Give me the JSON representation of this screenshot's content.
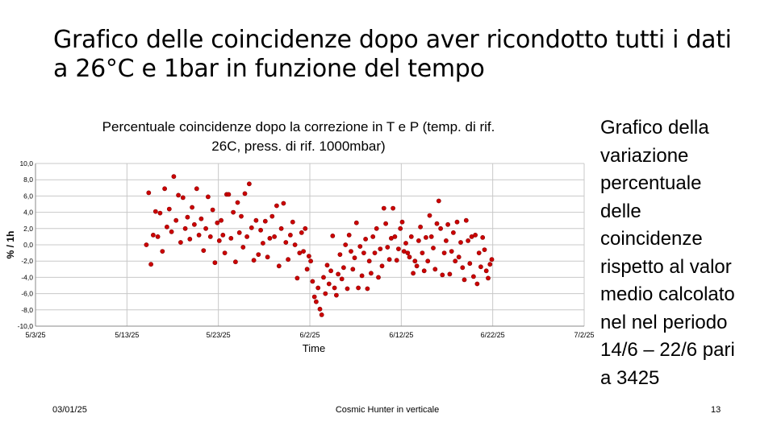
{
  "slide": {
    "title_lines": [
      "Grafico delle coincidenze dopo aver ricondotto tutti i dati",
      "a 26°C e 1bar in funzione del tempo"
    ],
    "side_text_lines": [
      "Grafico della",
      "variazione",
      "percentuale",
      "delle",
      "coincidenze",
      "rispetto al valor",
      "medio calcolato",
      "nel nel periodo",
      "14/6 – 22/6 pari",
      "a 3425"
    ],
    "footer": {
      "date": "03/01/25",
      "center": "Cosmic Hunter in verticale",
      "page": "13"
    }
  },
  "chart_data": {
    "type": "scatter",
    "title_lines": [
      "Percentuale coincidenze dopo la correzione in T  e P (temp. di rif.",
      "26C, press. di rif. 1000mbar)"
    ],
    "xlabel": "Time",
    "ylabel": "% / 1h",
    "xlim": [
      "2025-05-03",
      "2025-07-02"
    ],
    "ylim": [
      -10,
      10
    ],
    "x_ticks": [
      "5/3/25",
      "5/13/25",
      "5/23/25",
      "6/2/25",
      "6/12/25",
      "6/22/25",
      "7/2/25"
    ],
    "y_ticks": [
      "10,0",
      "8,0",
      "6,0",
      "4,0",
      "2,0",
      "0,0",
      "-2,0",
      "-4,0",
      "-6,0",
      "-8,0",
      "-10,0"
    ],
    "grid": true,
    "marker_color": "#cc0000",
    "points_by_day": [
      {
        "date": "2025-05-15",
        "values": [
          0.0,
          6.4,
          -2.4,
          1.2
        ]
      },
      {
        "date": "2025-05-16",
        "values": [
          4.1,
          1.0,
          3.9,
          -0.8
        ]
      },
      {
        "date": "2025-05-17",
        "values": [
          6.9,
          2.2,
          4.4,
          1.6
        ]
      },
      {
        "date": "2025-05-18",
        "values": [
          8.4,
          3.0,
          6.1,
          0.3
        ]
      },
      {
        "date": "2025-05-19",
        "values": [
          5.8,
          2.0,
          3.4,
          0.7
        ]
      },
      {
        "date": "2025-05-20",
        "values": [
          4.6,
          2.5,
          6.9,
          1.2
        ]
      },
      {
        "date": "2025-05-21",
        "values": [
          3.2,
          -0.7,
          2.0,
          5.9
        ]
      },
      {
        "date": "2025-05-22",
        "values": [
          1.0,
          4.3,
          -2.2,
          2.7
        ]
      },
      {
        "date": "2025-05-23",
        "values": [
          0.5,
          3.0,
          1.2,
          -1.0,
          6.2
        ]
      },
      {
        "date": "2025-05-24",
        "values": [
          6.2,
          0.8,
          4.0,
          -2.1
        ]
      },
      {
        "date": "2025-05-25",
        "values": [
          5.2,
          1.5,
          3.5,
          -0.3,
          6.3
        ]
      },
      {
        "date": "2025-05-26",
        "values": [
          1.0,
          7.5,
          2.1,
          -1.9
        ]
      },
      {
        "date": "2025-05-27",
        "values": [
          3.0,
          -1.2,
          1.8,
          0.2
        ]
      },
      {
        "date": "2025-05-28",
        "values": [
          2.9,
          -1.5,
          0.8,
          3.5
        ]
      },
      {
        "date": "2025-05-29",
        "values": [
          1.0,
          4.8,
          -2.6,
          2.0
        ]
      },
      {
        "date": "2025-05-30",
        "values": [
          5.1,
          0.3,
          -1.8,
          1.2
        ]
      },
      {
        "date": "2025-05-31",
        "values": [
          2.8,
          0.0,
          -4.1,
          -1.0
        ]
      },
      {
        "date": "2025-06-01",
        "values": [
          1.5,
          -0.8,
          2.0,
          -3.0,
          -1.4
        ]
      },
      {
        "date": "2025-06-02",
        "values": [
          -2.0,
          -4.5,
          -6.4,
          -7.0,
          -5.3
        ]
      },
      {
        "date": "2025-06-03",
        "values": [
          -7.9,
          -8.6,
          -4.0,
          -6.0,
          -2.5
        ]
      },
      {
        "date": "2025-06-04",
        "values": [
          -4.8,
          -3.2,
          1.1,
          -5.3,
          -6.2
        ]
      },
      {
        "date": "2025-06-05",
        "values": [
          -3.6,
          -1.2,
          -4.2,
          -2.8,
          0.0
        ]
      },
      {
        "date": "2025-06-06",
        "values": [
          -5.4,
          1.2,
          -0.8,
          -3.0,
          -1.6
        ]
      },
      {
        "date": "2025-06-07",
        "values": [
          2.7,
          -5.3,
          -0.2,
          -3.8,
          -1.0
        ]
      },
      {
        "date": "2025-06-08",
        "values": [
          0.7,
          -5.4,
          -2.0,
          -3.5,
          1.0
        ]
      },
      {
        "date": "2025-06-09",
        "values": [
          -1.0,
          2.0,
          -4.0,
          -0.5,
          -2.6
        ]
      },
      {
        "date": "2025-06-10",
        "values": [
          4.5,
          2.6,
          -0.3,
          -1.8,
          0.8
        ]
      },
      {
        "date": "2025-06-11",
        "values": [
          4.5,
          1.0,
          -1.9,
          -0.5,
          2.0
        ]
      },
      {
        "date": "2025-06-12",
        "values": [
          2.8,
          -0.8,
          0.2,
          -1.0,
          -1.5
        ]
      },
      {
        "date": "2025-06-13",
        "values": [
          1.0,
          -3.5,
          -2.0,
          -2.6,
          0.5
        ]
      },
      {
        "date": "2025-06-14",
        "values": [
          2.2,
          -1.0,
          -3.2,
          0.9,
          -2.0
        ]
      },
      {
        "date": "2025-06-15",
        "values": [
          3.6,
          1.0,
          -0.4,
          -3.0,
          2.6
        ]
      },
      {
        "date": "2025-06-16",
        "values": [
          5.4,
          2.0,
          -3.7,
          -1.0,
          0.5
        ]
      },
      {
        "date": "2025-06-17",
        "values": [
          2.5,
          -3.6,
          -0.8,
          1.5,
          -2.0
        ]
      },
      {
        "date": "2025-06-18",
        "values": [
          2.8,
          -1.5,
          0.3,
          -2.8,
          -4.3
        ]
      },
      {
        "date": "2025-06-19",
        "values": [
          3.0,
          0.5,
          -2.3,
          1.0,
          -3.9
        ]
      },
      {
        "date": "2025-06-20",
        "values": [
          1.2,
          -4.8,
          -1.0,
          -2.7,
          0.9
        ]
      },
      {
        "date": "2025-06-21",
        "values": [
          -0.6,
          -3.2,
          -4.1,
          -2.4,
          -1.8
        ]
      }
    ]
  }
}
